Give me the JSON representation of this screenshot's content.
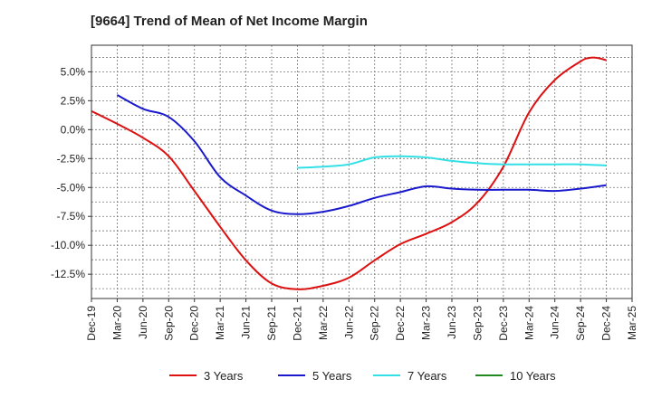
{
  "chart_data": {
    "type": "line",
    "title": "[9664]  Trend of Mean of Net Income Margin",
    "xlabel": "",
    "ylabel": "",
    "x_ticks": [
      "Dec-19",
      "Mar-20",
      "Jun-20",
      "Sep-20",
      "Dec-20",
      "Mar-21",
      "Jun-21",
      "Sep-21",
      "Dec-21",
      "Mar-22",
      "Jun-22",
      "Sep-22",
      "Dec-22",
      "Mar-23",
      "Jun-23",
      "Sep-23",
      "Dec-23",
      "Mar-24",
      "Jun-24",
      "Sep-24",
      "Dec-24",
      "Mar-25"
    ],
    "y_ticks": [
      "5.0%",
      "2.5%",
      "0.0%",
      "-2.5%",
      "-5.0%",
      "-7.5%",
      "-10.0%",
      "-12.5%"
    ],
    "y_tick_values": [
      5.0,
      2.5,
      0.0,
      -2.5,
      -5.0,
      -7.5,
      -10.0,
      -12.5
    ],
    "ylim": [
      -14.6,
      7.3
    ],
    "grid": true,
    "legend_position": "bottom",
    "series": [
      {
        "name": "3 Years",
        "color": "#dd1111",
        "points": [
          [
            "Dec-19",
            1.6
          ],
          [
            "Mar-20",
            0.5
          ],
          [
            "Jun-20",
            -0.7
          ],
          [
            "Sep-20",
            -2.3
          ],
          [
            "Dec-20",
            -5.3
          ],
          [
            "Mar-21",
            -8.4
          ],
          [
            "Jun-21",
            -11.3
          ],
          [
            "Sep-21",
            -13.3
          ],
          [
            "Dec-21",
            -13.8
          ],
          [
            "Mar-22",
            -13.5
          ],
          [
            "Jun-22",
            -12.8
          ],
          [
            "Sep-22",
            -11.3
          ],
          [
            "Dec-22",
            -9.9
          ],
          [
            "Mar-23",
            -9.0
          ],
          [
            "Jun-23",
            -8.0
          ],
          [
            "Sep-23",
            -6.3
          ],
          [
            "Dec-23",
            -3.2
          ],
          [
            "Mar-24",
            1.5
          ],
          [
            "Jun-24",
            4.3
          ],
          [
            "Sep-24",
            5.9
          ],
          [
            "Oct-24",
            6.2
          ],
          [
            "Nov-24",
            6.2
          ],
          [
            "Dec-24",
            6.0
          ]
        ]
      },
      {
        "name": "5 Years",
        "color": "#1a1acc",
        "points": [
          [
            "Mar-20",
            3.0
          ],
          [
            "Jun-20",
            1.8
          ],
          [
            "Sep-20",
            1.1
          ],
          [
            "Dec-20",
            -1.0
          ],
          [
            "Mar-21",
            -4.1
          ],
          [
            "Jun-21",
            -5.7
          ],
          [
            "Sep-21",
            -7.0
          ],
          [
            "Dec-21",
            -7.3
          ],
          [
            "Mar-22",
            -7.1
          ],
          [
            "Jun-22",
            -6.6
          ],
          [
            "Sep-22",
            -5.9
          ],
          [
            "Dec-22",
            -5.4
          ],
          [
            "Mar-23",
            -4.9
          ],
          [
            "Jun-23",
            -5.1
          ],
          [
            "Sep-23",
            -5.2
          ],
          [
            "Dec-23",
            -5.2
          ],
          [
            "Mar-24",
            -5.2
          ],
          [
            "Jun-24",
            -5.3
          ],
          [
            "Sep-24",
            -5.1
          ],
          [
            "Dec-24",
            -4.8
          ]
        ]
      },
      {
        "name": "7 Years",
        "color": "#33e0e6",
        "points": [
          [
            "Dec-21",
            -3.3
          ],
          [
            "Mar-22",
            -3.2
          ],
          [
            "Jun-22",
            -3.0
          ],
          [
            "Sep-22",
            -2.4
          ],
          [
            "Dec-22",
            -2.3
          ],
          [
            "Mar-23",
            -2.4
          ],
          [
            "Jun-23",
            -2.7
          ],
          [
            "Sep-23",
            -2.9
          ],
          [
            "Dec-23",
            -3.0
          ],
          [
            "Mar-24",
            -3.0
          ],
          [
            "Jun-24",
            -3.0
          ],
          [
            "Sep-24",
            -3.0
          ],
          [
            "Dec-24",
            -3.1
          ]
        ]
      },
      {
        "name": "10 Years",
        "color": "#228822",
        "points": []
      }
    ]
  }
}
